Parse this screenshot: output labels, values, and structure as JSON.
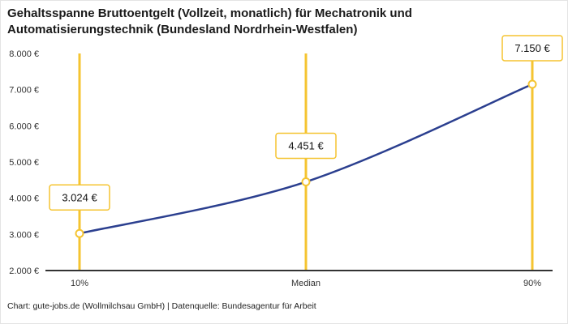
{
  "title": "Gehaltsspanne Bruttoentgelt (Vollzeit, monatlich) für Mechatronik und\nAutomatisierungstechnik (Bundesland Nordrhein-Westfalen)",
  "footer": "Chart: gute-jobs.de (Wollmilchsau GmbH) | Datenquelle: Bundesagentur für Arbeit",
  "chart_data": {
    "type": "line",
    "title": "Gehaltsspanne Bruttoentgelt (Vollzeit, monatlich) für Mechatronik und Automatisierungstechnik (Bundesland Nordrhein-Westfalen)",
    "categories": [
      "10%",
      "Median",
      "90%"
    ],
    "values": [
      3024,
      4451,
      7150
    ],
    "value_labels": [
      "3.024 €",
      "4.451 €",
      "7.150 €"
    ],
    "xlabel": "",
    "ylabel": "",
    "ylim": [
      2000,
      8000
    ],
    "ytick_step": 1000,
    "ytick_labels": [
      "2.000 €",
      "3.000 €",
      "4.000 €",
      "5.000 €",
      "6.000 €",
      "7.000 €",
      "8.000 €"
    ],
    "grid": false,
    "legend": false,
    "colors": {
      "line": "#2b3f8f",
      "vline": "#f5c431",
      "marker_stroke": "#f5c431",
      "marker_fill": "#ffffff",
      "label_border": "#f5c431",
      "label_fill": "#ffffff",
      "axis": "#333333",
      "tick_text": "#333333"
    }
  }
}
